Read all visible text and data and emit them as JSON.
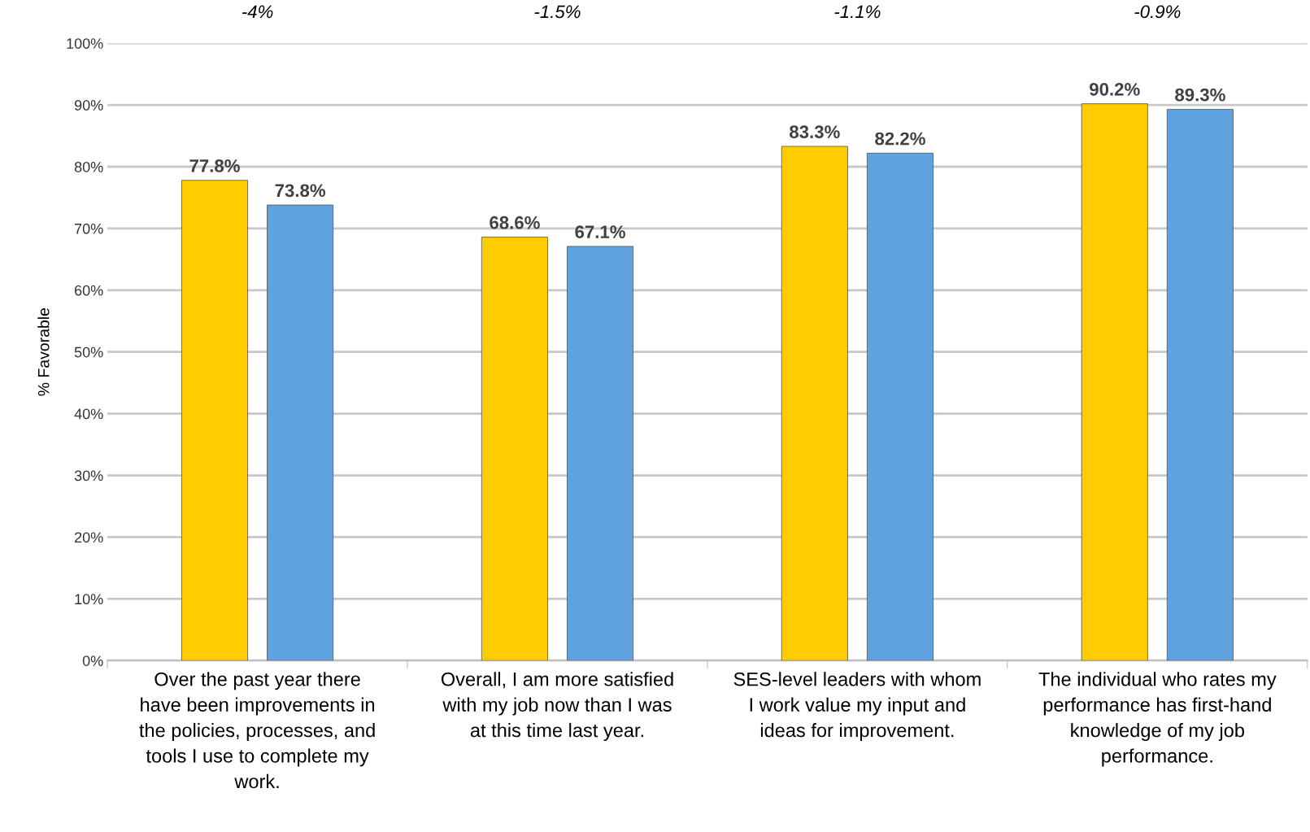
{
  "chart_data": {
    "type": "bar",
    "ylabel": "% Favorable",
    "categories": [
      "Over the past year there\nhave been improvements in\nthe policies, processes, and\ntools I use to complete my\nwork.",
      "Overall, I am more satisfied\nwith my job now than I was\nat this time last year.",
      "SES-level leaders with whom\nI work value my input and\nideas for improvement.",
      "The individual who rates my\nperformance has first-hand\nknowledge of my job\nperformance."
    ],
    "series": [
      {
        "color": "#ffcc00",
        "values": [
          77.8,
          68.6,
          83.3,
          90.2
        ],
        "value_labels": [
          "77.8%",
          "68.6%",
          "83.3%",
          "90.2%"
        ]
      },
      {
        "color": "#5fa3de",
        "values": [
          73.8,
          67.1,
          82.2,
          89.3
        ],
        "value_labels": [
          "73.8%",
          "67.1%",
          "82.2%",
          "89.3%"
        ]
      }
    ],
    "annotations": [
      "-4%",
      "-1.5%",
      "-1.1%",
      "-0.9%"
    ],
    "ylim": [
      0,
      100
    ],
    "yticks": [
      {
        "value": 0,
        "label": "0%"
      },
      {
        "value": 10,
        "label": "10%"
      },
      {
        "value": 20,
        "label": "20%"
      },
      {
        "value": 30,
        "label": "30%"
      },
      {
        "value": 40,
        "label": "40%"
      },
      {
        "value": 50,
        "label": "50%"
      },
      {
        "value": 60,
        "label": "60%"
      },
      {
        "value": 70,
        "label": "70%"
      },
      {
        "value": 80,
        "label": "80%"
      },
      {
        "value": 90,
        "label": "90%"
      },
      {
        "value": 100,
        "label": "100%"
      }
    ],
    "grid": "y"
  }
}
